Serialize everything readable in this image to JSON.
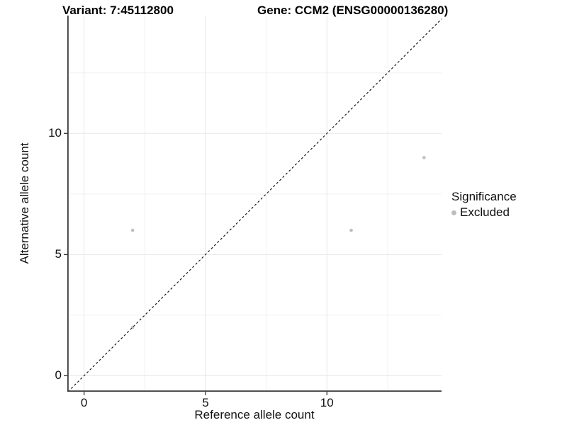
{
  "chart_data": {
    "type": "scatter",
    "title_left": "Variant: 7:45112800",
    "title_right": "Gene: CCM2 (ENSG00000136280)",
    "xlabel": "Reference allele count",
    "ylabel": "Alternative allele count",
    "xlim": [
      -0.69,
      14.72
    ],
    "ylim": [
      -0.66,
      14.86
    ],
    "x_ticks": [
      0,
      5,
      10
    ],
    "y_ticks": [
      0,
      5,
      10
    ],
    "x_minor_gridlines": [
      2.5,
      7.5,
      12.5
    ],
    "y_minor_gridlines": [
      2.5,
      7.5,
      12.5
    ],
    "grid": "on",
    "identity_line": {
      "slope": 1,
      "intercept": 0,
      "style": "dashed",
      "color": "#1a1a1a"
    },
    "series": [
      {
        "name": "Excluded",
        "color": "#bdbdbd",
        "points": [
          {
            "x": 2,
            "y": 2
          },
          {
            "x": 2,
            "y": 6
          },
          {
            "x": 11,
            "y": 6
          },
          {
            "x": 14,
            "y": 9
          }
        ]
      }
    ],
    "legend": {
      "title": "Significance",
      "position": "right",
      "entries": [
        {
          "label": "Excluded",
          "color": "#bdbdbd"
        }
      ]
    },
    "colors": {
      "background": "#ffffff",
      "grid_major": "#e7e7e7",
      "grid_minor": "#f2f2f2",
      "axis_line": "#3c3c3c",
      "tick_mark": "#333333",
      "text": "#111111"
    }
  }
}
